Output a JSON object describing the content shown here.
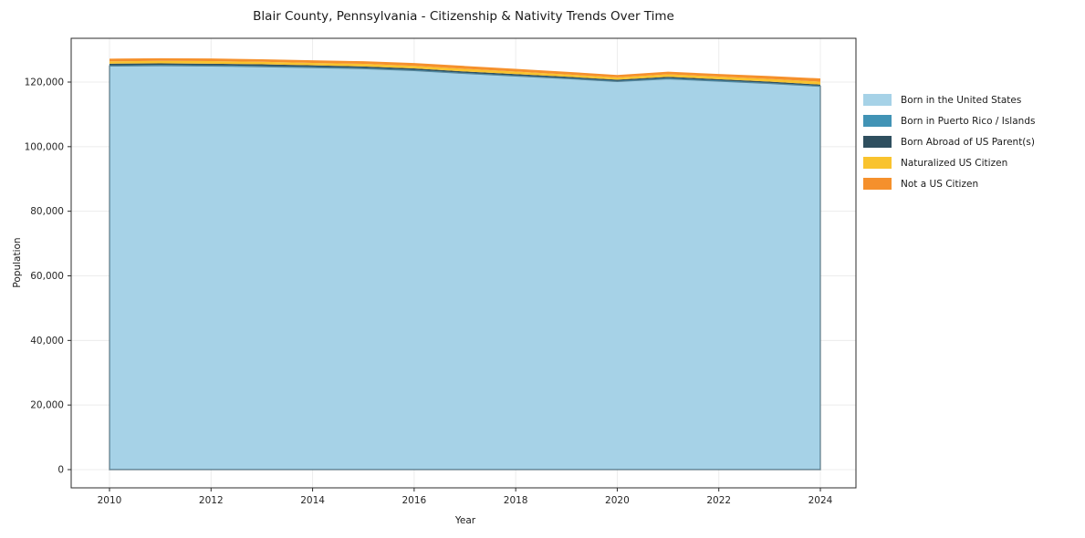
{
  "chart_data": {
    "type": "area",
    "stacked": true,
    "title": "Blair County, Pennsylvania - Citizenship & Nativity Trends Over Time",
    "xlabel": "Year",
    "ylabel": "Population",
    "x": [
      2010,
      2011,
      2012,
      2013,
      2014,
      2015,
      2016,
      2017,
      2018,
      2019,
      2020,
      2021,
      2022,
      2023,
      2024
    ],
    "xticks": {
      "values": [
        2010,
        2012,
        2014,
        2016,
        2018,
        2020,
        2022,
        2024
      ],
      "labels": [
        "2010",
        "2012",
        "2014",
        "2016",
        "2018",
        "2020",
        "2022",
        "2024"
      ]
    },
    "yticks": {
      "values": [
        0,
        20000,
        40000,
        60000,
        80000,
        100000,
        120000
      ],
      "labels": [
        "0",
        "20,000",
        "40,000",
        "60,000",
        "80,000",
        "100,000",
        "120,000"
      ]
    },
    "ylim": [
      -5600,
      133500
    ],
    "grid": true,
    "legend_position": "right",
    "series": [
      {
        "name": "Born in the United States",
        "color": "#a6d2e7",
        "values": [
          125000,
          125100,
          125000,
          124800,
          124500,
          124200,
          123600,
          122700,
          121900,
          121100,
          120200,
          121000,
          120300,
          119600,
          118700
        ]
      },
      {
        "name": "Born in Puerto Rico / Islands",
        "color": "#4193b5",
        "values": [
          180,
          180,
          190,
          190,
          180,
          170,
          160,
          160,
          150,
          150,
          160,
          200,
          190,
          170,
          160
        ]
      },
      {
        "name": "Born Abroad of US Parent(s)",
        "color": "#2f4f5f",
        "values": [
          520,
          520,
          510,
          500,
          500,
          480,
          460,
          430,
          420,
          400,
          380,
          420,
          410,
          380,
          360
        ]
      },
      {
        "name": "Naturalized US Citizen",
        "color": "#f9c32e",
        "values": [
          720,
          760,
          790,
          790,
          760,
          780,
          790,
          800,
          760,
          720,
          700,
          790,
          800,
          820,
          900
        ]
      },
      {
        "name": "Not a US Citizen",
        "color": "#f5902c",
        "values": [
          820,
          830,
          820,
          780,
          800,
          820,
          880,
          900,
          860,
          810,
          760,
          800,
          810,
          900,
          1000
        ]
      }
    ]
  }
}
